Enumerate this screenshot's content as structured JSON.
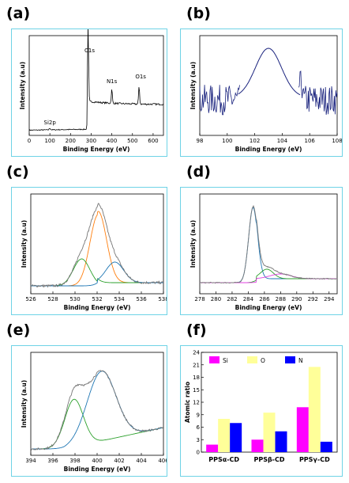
{
  "panel_labels": [
    "(a)",
    "(b)",
    "(c)",
    "(d)",
    "(e)",
    "(f)"
  ],
  "chart_data": [
    {
      "id": "a",
      "type": "line",
      "xlabel": "Binding Energy (eV)",
      "ylabel": "Intensity (a.u)",
      "xlim": [
        0,
        650
      ],
      "xticks": [
        0,
        100,
        200,
        300,
        400,
        500,
        600
      ],
      "annotations": [
        {
          "text": "Si2p",
          "x": 100
        },
        {
          "text": "C1s",
          "x": 285
        },
        {
          "text": "N1s",
          "x": 400
        },
        {
          "text": "O1s",
          "x": 532
        }
      ]
    },
    {
      "id": "b",
      "type": "line",
      "xlabel": "Binding Energy (eV)",
      "ylabel": "Intensity (a.u)",
      "xlim": [
        98,
        108
      ],
      "xticks": [
        98,
        100,
        102,
        104,
        106,
        108
      ],
      "series": [
        {
          "peak_center": 103.0
        }
      ]
    },
    {
      "id": "c",
      "type": "line",
      "xlabel": "Binding Energy (eV)",
      "ylabel": "Intensity (a.u)",
      "xlim": [
        526,
        538
      ],
      "xticks": [
        526,
        528,
        530,
        532,
        534,
        536,
        538
      ],
      "series": [
        {
          "color": "#777777",
          "peak_center": 532.0
        },
        {
          "color": "#ff7f0e",
          "peak_center": 532.1
        },
        {
          "color": "#2ca02c",
          "peak_center": 530.6
        },
        {
          "color": "#1f77b4",
          "peak_center": 533.6
        }
      ]
    },
    {
      "id": "d",
      "type": "line",
      "xlabel": "Binding Energy (eV)",
      "ylabel": "Intensity (a.u)",
      "xlim": [
        278,
        295
      ],
      "xticks": [
        278,
        280,
        282,
        284,
        286,
        288,
        290,
        292,
        294
      ],
      "series": [
        {
          "color": "#777777",
          "peak_center": 284.6
        },
        {
          "color": "#1f77b4",
          "peak_center": 284.6
        },
        {
          "color": "#2ca02c",
          "peak_center": 286.3
        },
        {
          "color": "#e040e0",
          "peak_center": 288.0
        }
      ]
    },
    {
      "id": "e",
      "type": "line",
      "xlabel": "Binding Energy (eV)",
      "ylabel": "Intensity (a.u)",
      "xlim": [
        394,
        406
      ],
      "xticks": [
        394,
        396,
        398,
        400,
        402,
        404,
        406
      ],
      "series": [
        {
          "color": "#777777",
          "peak_center": 400.3
        },
        {
          "color": "#2ca02c",
          "peak_center": 397.9
        },
        {
          "color": "#1f77b4",
          "peak_center": 400.4
        }
      ]
    },
    {
      "id": "f",
      "type": "bar",
      "ylabel": "Atomic ratio",
      "ylim": [
        0,
        24
      ],
      "yticks": [
        0,
        3,
        6,
        9,
        12,
        15,
        18,
        21,
        24
      ],
      "categories": [
        "PPSα-CD",
        "PPSβ-CD",
        "PPSγ-CD"
      ],
      "legend_position": "top",
      "series": [
        {
          "name": "Si",
          "color": "#ff00ff",
          "values": [
            1.8,
            3.0,
            10.8
          ]
        },
        {
          "name": "O",
          "color": "#ffff99",
          "values": [
            8.0,
            9.5,
            20.5
          ]
        },
        {
          "name": "N",
          "color": "#0000ff",
          "values": [
            7.0,
            5.0,
            2.5
          ]
        }
      ]
    }
  ]
}
